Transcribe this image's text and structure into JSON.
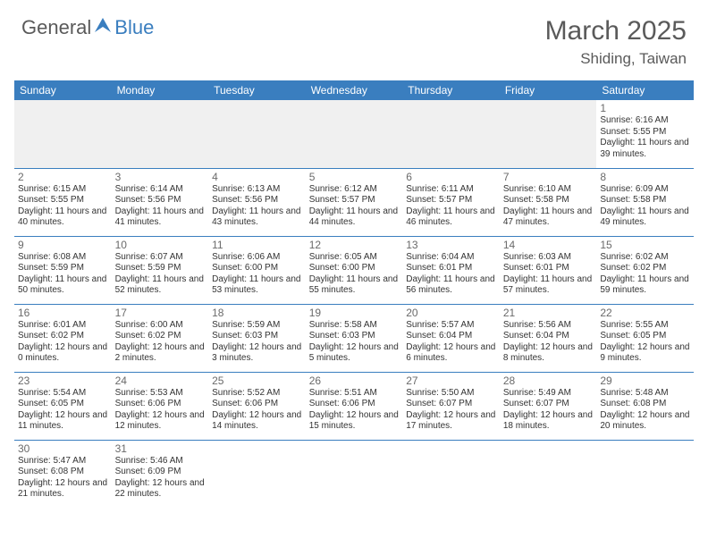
{
  "logo": {
    "general": "General",
    "blue": "Blue"
  },
  "title": "March 2025",
  "location": "Shiding, Taiwan",
  "colors": {
    "header_bg": "#3a7ebf",
    "header_text": "#ffffff",
    "border": "#3a7ebf",
    "empty_bg": "#f0f0f0",
    "text": "#333333",
    "title_color": "#5a5a5a"
  },
  "dayHeaders": [
    "Sunday",
    "Monday",
    "Tuesday",
    "Wednesday",
    "Thursday",
    "Friday",
    "Saturday"
  ],
  "weeks": [
    [
      null,
      null,
      null,
      null,
      null,
      null,
      {
        "n": "1",
        "sr": "Sunrise: 6:16 AM",
        "ss": "Sunset: 5:55 PM",
        "dl": "Daylight: 11 hours and 39 minutes."
      }
    ],
    [
      {
        "n": "2",
        "sr": "Sunrise: 6:15 AM",
        "ss": "Sunset: 5:55 PM",
        "dl": "Daylight: 11 hours and 40 minutes."
      },
      {
        "n": "3",
        "sr": "Sunrise: 6:14 AM",
        "ss": "Sunset: 5:56 PM",
        "dl": "Daylight: 11 hours and 41 minutes."
      },
      {
        "n": "4",
        "sr": "Sunrise: 6:13 AM",
        "ss": "Sunset: 5:56 PM",
        "dl": "Daylight: 11 hours and 43 minutes."
      },
      {
        "n": "5",
        "sr": "Sunrise: 6:12 AM",
        "ss": "Sunset: 5:57 PM",
        "dl": "Daylight: 11 hours and 44 minutes."
      },
      {
        "n": "6",
        "sr": "Sunrise: 6:11 AM",
        "ss": "Sunset: 5:57 PM",
        "dl": "Daylight: 11 hours and 46 minutes."
      },
      {
        "n": "7",
        "sr": "Sunrise: 6:10 AM",
        "ss": "Sunset: 5:58 PM",
        "dl": "Daylight: 11 hours and 47 minutes."
      },
      {
        "n": "8",
        "sr": "Sunrise: 6:09 AM",
        "ss": "Sunset: 5:58 PM",
        "dl": "Daylight: 11 hours and 49 minutes."
      }
    ],
    [
      {
        "n": "9",
        "sr": "Sunrise: 6:08 AM",
        "ss": "Sunset: 5:59 PM",
        "dl": "Daylight: 11 hours and 50 minutes."
      },
      {
        "n": "10",
        "sr": "Sunrise: 6:07 AM",
        "ss": "Sunset: 5:59 PM",
        "dl": "Daylight: 11 hours and 52 minutes."
      },
      {
        "n": "11",
        "sr": "Sunrise: 6:06 AM",
        "ss": "Sunset: 6:00 PM",
        "dl": "Daylight: 11 hours and 53 minutes."
      },
      {
        "n": "12",
        "sr": "Sunrise: 6:05 AM",
        "ss": "Sunset: 6:00 PM",
        "dl": "Daylight: 11 hours and 55 minutes."
      },
      {
        "n": "13",
        "sr": "Sunrise: 6:04 AM",
        "ss": "Sunset: 6:01 PM",
        "dl": "Daylight: 11 hours and 56 minutes."
      },
      {
        "n": "14",
        "sr": "Sunrise: 6:03 AM",
        "ss": "Sunset: 6:01 PM",
        "dl": "Daylight: 11 hours and 57 minutes."
      },
      {
        "n": "15",
        "sr": "Sunrise: 6:02 AM",
        "ss": "Sunset: 6:02 PM",
        "dl": "Daylight: 11 hours and 59 minutes."
      }
    ],
    [
      {
        "n": "16",
        "sr": "Sunrise: 6:01 AM",
        "ss": "Sunset: 6:02 PM",
        "dl": "Daylight: 12 hours and 0 minutes."
      },
      {
        "n": "17",
        "sr": "Sunrise: 6:00 AM",
        "ss": "Sunset: 6:02 PM",
        "dl": "Daylight: 12 hours and 2 minutes."
      },
      {
        "n": "18",
        "sr": "Sunrise: 5:59 AM",
        "ss": "Sunset: 6:03 PM",
        "dl": "Daylight: 12 hours and 3 minutes."
      },
      {
        "n": "19",
        "sr": "Sunrise: 5:58 AM",
        "ss": "Sunset: 6:03 PM",
        "dl": "Daylight: 12 hours and 5 minutes."
      },
      {
        "n": "20",
        "sr": "Sunrise: 5:57 AM",
        "ss": "Sunset: 6:04 PM",
        "dl": "Daylight: 12 hours and 6 minutes."
      },
      {
        "n": "21",
        "sr": "Sunrise: 5:56 AM",
        "ss": "Sunset: 6:04 PM",
        "dl": "Daylight: 12 hours and 8 minutes."
      },
      {
        "n": "22",
        "sr": "Sunrise: 5:55 AM",
        "ss": "Sunset: 6:05 PM",
        "dl": "Daylight: 12 hours and 9 minutes."
      }
    ],
    [
      {
        "n": "23",
        "sr": "Sunrise: 5:54 AM",
        "ss": "Sunset: 6:05 PM",
        "dl": "Daylight: 12 hours and 11 minutes."
      },
      {
        "n": "24",
        "sr": "Sunrise: 5:53 AM",
        "ss": "Sunset: 6:06 PM",
        "dl": "Daylight: 12 hours and 12 minutes."
      },
      {
        "n": "25",
        "sr": "Sunrise: 5:52 AM",
        "ss": "Sunset: 6:06 PM",
        "dl": "Daylight: 12 hours and 14 minutes."
      },
      {
        "n": "26",
        "sr": "Sunrise: 5:51 AM",
        "ss": "Sunset: 6:06 PM",
        "dl": "Daylight: 12 hours and 15 minutes."
      },
      {
        "n": "27",
        "sr": "Sunrise: 5:50 AM",
        "ss": "Sunset: 6:07 PM",
        "dl": "Daylight: 12 hours and 17 minutes."
      },
      {
        "n": "28",
        "sr": "Sunrise: 5:49 AM",
        "ss": "Sunset: 6:07 PM",
        "dl": "Daylight: 12 hours and 18 minutes."
      },
      {
        "n": "29",
        "sr": "Sunrise: 5:48 AM",
        "ss": "Sunset: 6:08 PM",
        "dl": "Daylight: 12 hours and 20 minutes."
      }
    ],
    [
      {
        "n": "30",
        "sr": "Sunrise: 5:47 AM",
        "ss": "Sunset: 6:08 PM",
        "dl": "Daylight: 12 hours and 21 minutes."
      },
      {
        "n": "31",
        "sr": "Sunrise: 5:46 AM",
        "ss": "Sunset: 6:09 PM",
        "dl": "Daylight: 12 hours and 22 minutes."
      },
      null,
      null,
      null,
      null,
      null
    ]
  ]
}
